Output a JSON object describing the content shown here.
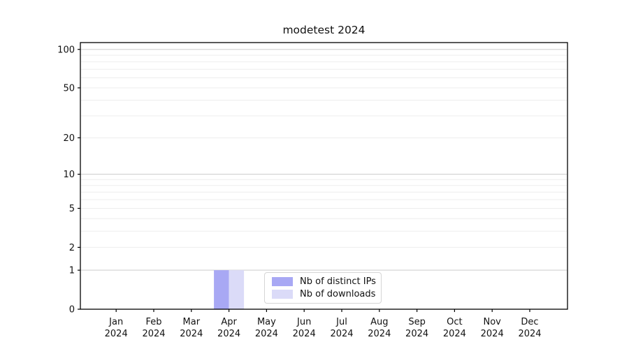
{
  "title": "modetest 2024",
  "legend": {
    "items": [
      {
        "label": "Nb of distinct IPs",
        "color": "#a8a8f4"
      },
      {
        "label": "Nb of downloads",
        "color": "#dbdbf8"
      }
    ]
  },
  "chart_data": {
    "type": "bar",
    "title": "modetest 2024",
    "categories": [
      "Jan",
      "Feb",
      "Mar",
      "Apr",
      "May",
      "Jun",
      "Jul",
      "Aug",
      "Sep",
      "Oct",
      "Nov",
      "Dec"
    ],
    "x_tick_second_line": "2024",
    "series": [
      {
        "name": "Nb of distinct IPs",
        "color": "#a8a8f4",
        "values": [
          0,
          0,
          0,
          1,
          0,
          0,
          0,
          0,
          0,
          0,
          0,
          0
        ]
      },
      {
        "name": "Nb of downloads",
        "color": "#dbdbf8",
        "values": [
          0,
          0,
          0,
          1,
          0,
          0,
          0,
          0,
          0,
          0,
          0,
          0
        ]
      }
    ],
    "xlabel": "",
    "ylabel": "",
    "y_scale": "log1p",
    "ylim": [
      0,
      113
    ],
    "y_ticks": [
      100,
      50,
      20,
      10,
      5,
      2,
      1,
      0
    ],
    "grid": true,
    "major_gridline_values": [
      1,
      10,
      100
    ],
    "minor_gridline_values": [
      2,
      3,
      4,
      5,
      6,
      7,
      8,
      9,
      20,
      30,
      40,
      50,
      60,
      70,
      80,
      90
    ],
    "legend_position": "bottom-center",
    "colors": {
      "spine": "#000000",
      "major_grid": "#d0d0d0",
      "minor_grid": "#ededed",
      "tick_label": "#111111"
    }
  }
}
